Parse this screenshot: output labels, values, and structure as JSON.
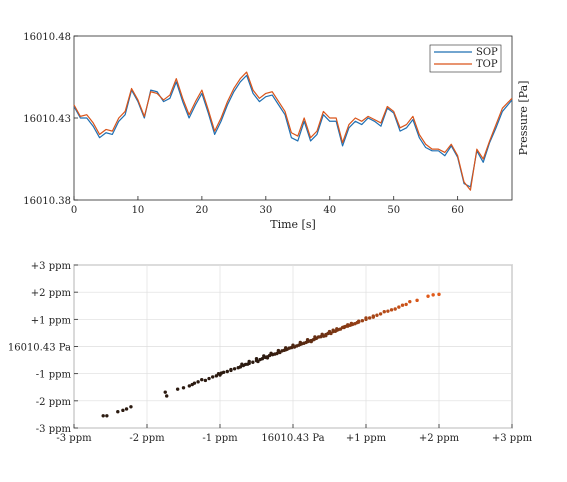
{
  "colors": {
    "sop": "#1f6fb2",
    "top": "#d9541a",
    "axis": "#262626",
    "grid": "#dedede",
    "scatter_dark": "#2b1a10",
    "scatter_light": "#e05a1a"
  },
  "chart_data": [
    {
      "type": "line",
      "xlabel": "Time [s]",
      "ylabel": "Pressure [Pa]",
      "xlim": [
        0,
        68.5
      ],
      "ylim": [
        16010.38,
        16010.48
      ],
      "xticks": [
        0,
        10,
        20,
        30,
        40,
        50,
        60
      ],
      "xtick_labels": [
        "0",
        "10",
        "20",
        "30",
        "40",
        "50",
        "60"
      ],
      "yticks": [
        16010.38,
        16010.43,
        16010.48
      ],
      "ytick_labels": [
        "16010.38",
        "16010.43",
        "16010.48"
      ],
      "legend_position": "top-right",
      "grid": false,
      "x": [
        0,
        1,
        2,
        3,
        4,
        5,
        6,
        7,
        8,
        9,
        10,
        11,
        12,
        13,
        14,
        15,
        16,
        17,
        18,
        19,
        20,
        21,
        22,
        23,
        24,
        25,
        26,
        27,
        28,
        29,
        30,
        31,
        32,
        33,
        34,
        35,
        36,
        37,
        38,
        39,
        40,
        41,
        42,
        43,
        44,
        45,
        46,
        47,
        48,
        49,
        50,
        51,
        52,
        53,
        54,
        55,
        56,
        57,
        58,
        59,
        60,
        61,
        62,
        63,
        64,
        65,
        66,
        67,
        68.5
      ],
      "series": [
        {
          "name": "SOP",
          "values": [
            16010.437,
            16010.43,
            16010.43,
            16010.425,
            16010.418,
            16010.421,
            16010.42,
            16010.428,
            16010.432,
            16010.447,
            16010.44,
            16010.43,
            16010.447,
            16010.446,
            16010.44,
            16010.442,
            16010.452,
            16010.44,
            16010.43,
            16010.438,
            16010.445,
            16010.433,
            16010.42,
            16010.428,
            16010.438,
            16010.446,
            16010.452,
            16010.456,
            16010.445,
            16010.44,
            16010.443,
            16010.444,
            16010.438,
            16010.432,
            16010.418,
            16010.416,
            16010.428,
            16010.416,
            16010.42,
            16010.432,
            16010.428,
            16010.428,
            16010.413,
            16010.424,
            16010.428,
            16010.426,
            16010.43,
            16010.428,
            16010.425,
            16010.436,
            16010.433,
            16010.422,
            16010.424,
            16010.429,
            16010.418,
            16010.412,
            16010.41,
            16010.41,
            16010.407,
            16010.413,
            16010.406,
            16010.39,
            16010.388,
            16010.41,
            16010.403,
            16010.415,
            16010.424,
            16010.434,
            16010.441
          ]
        },
        {
          "name": "TOP",
          "values": [
            16010.438,
            16010.431,
            16010.432,
            16010.427,
            16010.42,
            16010.423,
            16010.422,
            16010.43,
            16010.434,
            16010.448,
            16010.441,
            16010.431,
            16010.446,
            16010.445,
            16010.441,
            16010.444,
            16010.454,
            16010.442,
            16010.432,
            16010.44,
            16010.447,
            16010.435,
            16010.422,
            16010.43,
            16010.44,
            16010.448,
            16010.454,
            16010.458,
            16010.447,
            16010.442,
            16010.445,
            16010.446,
            16010.44,
            16010.434,
            16010.421,
            16010.419,
            16010.43,
            16010.418,
            16010.422,
            16010.434,
            16010.43,
            16010.43,
            16010.415,
            16010.426,
            16010.43,
            16010.428,
            16010.431,
            16010.429,
            16010.427,
            16010.437,
            16010.434,
            16010.424,
            16010.426,
            16010.431,
            16010.42,
            16010.414,
            16010.411,
            16010.411,
            16010.409,
            16010.414,
            16010.407,
            16010.391,
            16010.386,
            16010.411,
            16010.405,
            16010.416,
            16010.426,
            16010.436,
            16010.442
          ]
        }
      ]
    },
    {
      "type": "scatter",
      "xlim": [
        -3,
        3
      ],
      "ylim": [
        -3,
        3
      ],
      "xticks": [
        -3,
        -2,
        -1,
        0,
        1,
        2,
        3
      ],
      "xtick_labels": [
        "-3 ppm",
        "-2 ppm",
        "-1 ppm",
        "16010.43 Pa",
        "+1 ppm",
        "+2 ppm",
        "+3 ppm"
      ],
      "yticks": [
        -3,
        -2,
        -1,
        0,
        1,
        2,
        3
      ],
      "ytick_labels": [
        "-3 ppm",
        "-2 ppm",
        "-1 ppm",
        "16010.43 Pa",
        "+1 ppm",
        "+2 ppm",
        "+3 ppm"
      ],
      "grid": true,
      "points": [
        [
          -2.6,
          -2.55
        ],
        [
          -2.55,
          -2.55
        ],
        [
          -2.4,
          -2.4
        ],
        [
          -2.33,
          -2.35
        ],
        [
          -2.28,
          -2.3
        ],
        [
          -2.22,
          -2.22
        ],
        [
          -1.75,
          -1.68
        ],
        [
          -1.73,
          -1.82
        ],
        [
          -1.58,
          -1.57
        ],
        [
          -1.5,
          -1.52
        ],
        [
          -1.42,
          -1.45
        ],
        [
          -1.38,
          -1.4
        ],
        [
          -1.35,
          -1.35
        ],
        [
          -1.3,
          -1.3
        ],
        [
          -1.25,
          -1.22
        ],
        [
          -1.2,
          -1.25
        ],
        [
          -1.15,
          -1.18
        ],
        [
          -1.1,
          -1.12
        ],
        [
          -1.05,
          -1.08
        ],
        [
          -1.02,
          -1.0
        ],
        [
          -0.98,
          -0.98
        ],
        [
          -0.95,
          -0.95
        ],
        [
          -0.9,
          -0.92
        ],
        [
          -0.85,
          -0.85
        ],
        [
          -0.8,
          -0.82
        ],
        [
          -0.75,
          -0.78
        ],
        [
          -0.72,
          -0.75
        ],
        [
          -0.68,
          -0.7
        ],
        [
          -0.65,
          -0.66
        ],
        [
          -0.6,
          -0.62
        ],
        [
          -0.55,
          -0.58
        ],
        [
          -0.5,
          -0.52
        ],
        [
          -0.48,
          -0.55
        ],
        [
          -0.45,
          -0.48
        ],
        [
          -0.42,
          -0.45
        ],
        [
          -0.38,
          -0.4
        ],
        [
          -0.35,
          -0.38
        ],
        [
          -0.32,
          -0.33
        ],
        [
          -0.28,
          -0.3
        ],
        [
          -0.25,
          -0.28
        ],
        [
          -0.22,
          -0.26
        ],
        [
          -0.2,
          -0.2
        ],
        [
          -0.18,
          -0.22
        ],
        [
          -0.15,
          -0.16
        ],
        [
          -0.12,
          -0.14
        ],
        [
          -0.1,
          -0.12
        ],
        [
          -0.08,
          -0.1
        ],
        [
          -0.05,
          -0.06
        ],
        [
          -0.02,
          -0.04
        ],
        [
          0.0,
          0.0
        ],
        [
          0.02,
          -0.02
        ],
        [
          0.05,
          0.02
        ],
        [
          0.08,
          0.05
        ],
        [
          0.1,
          0.08
        ],
        [
          0.12,
          0.1
        ],
        [
          0.15,
          0.12
        ],
        [
          0.18,
          0.15
        ],
        [
          0.2,
          0.18
        ],
        [
          0.22,
          0.2
        ],
        [
          0.25,
          0.22
        ],
        [
          0.28,
          0.25
        ],
        [
          0.3,
          0.28
        ],
        [
          0.32,
          0.3
        ],
        [
          0.35,
          0.35
        ],
        [
          0.38,
          0.36
        ],
        [
          0.4,
          0.4
        ],
        [
          0.42,
          0.38
        ],
        [
          0.45,
          0.44
        ],
        [
          0.48,
          0.48
        ],
        [
          0.5,
          0.5
        ],
        [
          0.52,
          0.48
        ],
        [
          0.55,
          0.55
        ],
        [
          0.58,
          0.56
        ],
        [
          0.6,
          0.6
        ],
        [
          0.62,
          0.62
        ],
        [
          0.65,
          0.64
        ],
        [
          0.68,
          0.7
        ],
        [
          0.7,
          0.7
        ],
        [
          0.72,
          0.74
        ],
        [
          0.75,
          0.75
        ],
        [
          0.78,
          0.78
        ],
        [
          0.8,
          0.8
        ],
        [
          0.82,
          0.82
        ],
        [
          0.85,
          0.84
        ],
        [
          0.88,
          0.88
        ],
        [
          0.9,
          0.9
        ],
        [
          0.95,
          0.95
        ],
        [
          1.0,
          1.0
        ],
        [
          1.05,
          1.05
        ],
        [
          1.1,
          1.08
        ],
        [
          1.15,
          1.15
        ],
        [
          1.2,
          1.2
        ],
        [
          1.3,
          1.3
        ],
        [
          1.4,
          1.38
        ],
        [
          1.45,
          1.45
        ],
        [
          1.55,
          1.55
        ],
        [
          1.6,
          1.65
        ],
        [
          1.7,
          1.7
        ],
        [
          1.85,
          1.85
        ],
        [
          1.92,
          1.9
        ],
        [
          2.0,
          1.92
        ],
        [
          -0.7,
          -0.65
        ],
        [
          -0.5,
          -0.45
        ],
        [
          -0.3,
          -0.25
        ],
        [
          -0.1,
          -0.05
        ],
        [
          0.1,
          0.15
        ],
        [
          0.3,
          0.35
        ],
        [
          0.5,
          0.55
        ],
        [
          0.7,
          0.72
        ],
        [
          0.9,
          0.93
        ],
        [
          1.1,
          1.12
        ],
        [
          -0.6,
          -0.55
        ],
        [
          -0.4,
          -0.35
        ],
        [
          -0.2,
          -0.15
        ],
        [
          0.0,
          0.05
        ],
        [
          0.2,
          0.25
        ],
        [
          0.4,
          0.45
        ],
        [
          0.6,
          0.65
        ],
        [
          0.8,
          0.85
        ],
        [
          1.0,
          1.05
        ],
        [
          1.25,
          1.28
        ],
        [
          1.35,
          1.35
        ],
        [
          1.5,
          1.52
        ],
        [
          0.75,
          0.8
        ],
        [
          0.55,
          0.6
        ],
        [
          -0.85,
          -0.88
        ],
        [
          -1.0,
          -1.05
        ],
        [
          -0.62,
          -0.65
        ],
        [
          -0.35,
          -0.42
        ],
        [
          0.25,
          0.18
        ],
        [
          0.45,
          0.4
        ]
      ]
    }
  ]
}
